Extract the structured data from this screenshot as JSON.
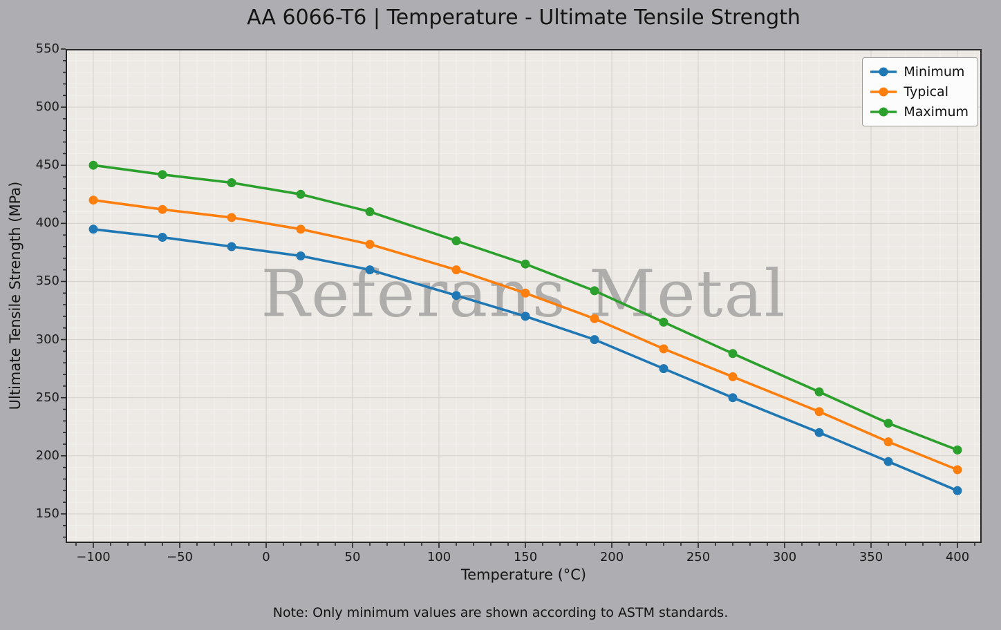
{
  "title": "AA 6066-T6 | Temperature - Ultimate Tensile Strength",
  "note": "Note: Only minimum values are shown according to ASTM standards.",
  "watermark": "Referans Metal",
  "chart_data": {
    "type": "line",
    "x": [
      -100,
      -60,
      -20,
      20,
      60,
      110,
      150,
      190,
      230,
      270,
      320,
      360,
      400
    ],
    "series": [
      {
        "name": "Minimum",
        "color": "#1f77b4",
        "values": [
          395,
          388,
          380,
          372,
          360,
          338,
          320,
          300,
          275,
          250,
          220,
          195,
          170
        ]
      },
      {
        "name": "Typical",
        "color": "#ff7f0e",
        "values": [
          420,
          412,
          405,
          395,
          382,
          360,
          340,
          318,
          292,
          268,
          238,
          212,
          188
        ]
      },
      {
        "name": "Maximum",
        "color": "#2ca02c",
        "values": [
          450,
          442,
          435,
          425,
          410,
          385,
          365,
          342,
          315,
          288,
          255,
          228,
          205
        ]
      }
    ],
    "xlabel": "Temperature (°C)",
    "ylabel": "Ultimate Tensile Strength (MPa)",
    "xlim": [
      -116,
      414
    ],
    "ylim": [
      125,
      550
    ],
    "xticks": [
      -100,
      -50,
      0,
      50,
      100,
      150,
      200,
      250,
      300,
      350,
      400
    ],
    "xtick_labels": [
      "−100",
      "−50",
      "0",
      "50",
      "100",
      "150",
      "200",
      "250",
      "300",
      "350",
      "400"
    ],
    "yticks": [
      150,
      200,
      250,
      300,
      350,
      400,
      450,
      500,
      550
    ],
    "ytick_labels": [
      "150",
      "200",
      "250",
      "300",
      "350",
      "400",
      "450",
      "500",
      "550"
    ],
    "minor_step_x": 10,
    "minor_step_y": 10,
    "grid": true,
    "legend_position": "top-right"
  },
  "colors": {
    "figure_bg": "#aeaeb2",
    "axes_bg": "#edeae5",
    "major_grid": "#d7d4cf",
    "minor_grid": "#f4f2ee",
    "spine": "#262626",
    "tick": "#262626",
    "text": "#141414",
    "watermark": "#7d7d7d",
    "legend_bg": "#fcfcfc",
    "legend_border": "#9b9b9b"
  }
}
